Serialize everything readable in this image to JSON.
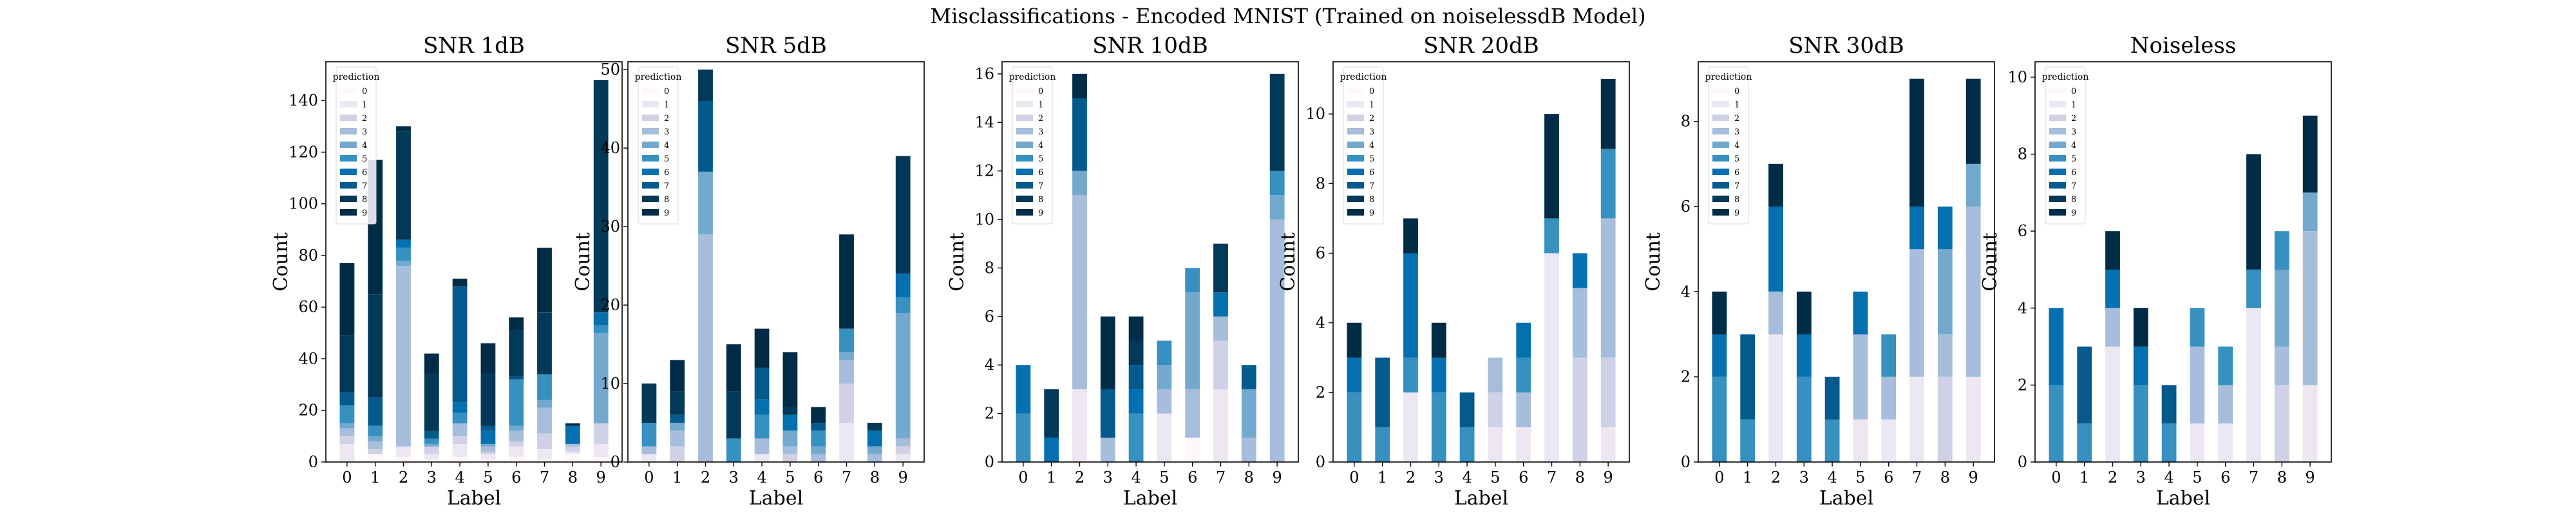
{
  "figure": {
    "title": "Misclassifications - Encoded MNIST (Trained on noiselessdB Model)"
  },
  "chart_data": [
    {
      "type": "bar",
      "stacked": true,
      "title": "SNR 1dB",
      "xlabel": "Label",
      "ylabel": "Count",
      "ylim": [
        0,
        155
      ],
      "yticks": [
        0,
        20,
        40,
        60,
        80,
        100,
        120,
        140
      ],
      "categories": [
        "0",
        "1",
        "2",
        "3",
        "4",
        "5",
        "6",
        "7",
        "8",
        "9"
      ],
      "legend_title": "prediction",
      "series": [
        {
          "name": "0",
          "values": [
            0,
            3,
            2,
            1,
            2,
            1,
            2,
            1,
            3,
            2
          ]
        },
        {
          "name": "1",
          "values": [
            7,
            0,
            4,
            2,
            5,
            2,
            4,
            4,
            1,
            5
          ]
        },
        {
          "name": "2",
          "values": [
            3,
            2,
            0,
            3,
            3,
            1,
            2,
            6,
            2,
            8
          ]
        },
        {
          "name": "3",
          "values": [
            3,
            3,
            70,
            0,
            5,
            2,
            4,
            10,
            1,
            0
          ]
        },
        {
          "name": "4",
          "values": [
            2,
            2,
            2,
            1,
            0,
            1,
            2,
            3,
            0,
            35
          ]
        },
        {
          "name": "5",
          "values": [
            7,
            4,
            5,
            2,
            4,
            0,
            18,
            10,
            0,
            3
          ]
        },
        {
          "name": "6",
          "values": [
            0,
            0,
            3,
            0,
            4,
            5,
            0,
            0,
            7,
            5
          ]
        },
        {
          "name": "7",
          "values": [
            5,
            11,
            0,
            3,
            45,
            2,
            1,
            0,
            0,
            0
          ]
        },
        {
          "name": "8",
          "values": [
            22,
            40,
            42,
            22,
            0,
            20,
            18,
            24,
            0,
            90
          ]
        },
        {
          "name": "9",
          "values": [
            28,
            52,
            2,
            8,
            3,
            12,
            5,
            25,
            1,
            0
          ]
        }
      ]
    },
    {
      "type": "bar",
      "stacked": true,
      "title": "SNR 5dB",
      "xlabel": "Label",
      "ylabel": "Count",
      "ylim": [
        0,
        51
      ],
      "yticks": [
        0,
        10,
        20,
        30,
        40,
        50
      ],
      "categories": [
        "0",
        "1",
        "2",
        "3",
        "4",
        "5",
        "6",
        "7",
        "8",
        "9"
      ],
      "legend_title": "prediction",
      "series": [
        {
          "name": "0",
          "values": [
            0,
            0,
            0,
            0,
            0,
            0,
            0,
            0,
            0,
            0
          ]
        },
        {
          "name": "1",
          "values": [
            1,
            0,
            0,
            0,
            1,
            0,
            0,
            5,
            0,
            1
          ]
        },
        {
          "name": "2",
          "values": [
            0,
            2,
            0,
            0,
            0,
            1,
            0,
            5,
            0,
            1
          ]
        },
        {
          "name": "3",
          "values": [
            1,
            2,
            29,
            0,
            2,
            1,
            1,
            3,
            1,
            1
          ]
        },
        {
          "name": "4",
          "values": [
            0,
            1,
            8,
            0,
            0,
            2,
            1,
            1,
            1,
            16
          ]
        },
        {
          "name": "5",
          "values": [
            3,
            0,
            0,
            3,
            3,
            0,
            2,
            3,
            0,
            2
          ]
        },
        {
          "name": "6",
          "values": [
            0,
            0,
            0,
            0,
            2,
            2,
            0,
            0,
            2,
            3
          ]
        },
        {
          "name": "7",
          "values": [
            0,
            1,
            9,
            0,
            4,
            0,
            1,
            0,
            0,
            0
          ]
        },
        {
          "name": "8",
          "values": [
            5,
            3,
            4,
            6,
            0,
            1,
            0,
            0,
            1,
            15
          ]
        },
        {
          "name": "9",
          "values": [
            0,
            4,
            0,
            6,
            5,
            7,
            2,
            12,
            0,
            0
          ]
        }
      ]
    },
    {
      "type": "bar",
      "stacked": true,
      "title": "SNR 10dB",
      "xlabel": "Label",
      "ylabel": "Count",
      "ylim": [
        0,
        16.5
      ],
      "yticks": [
        0,
        2,
        4,
        6,
        8,
        10,
        12,
        14,
        16
      ],
      "categories": [
        "0",
        "1",
        "2",
        "3",
        "4",
        "5",
        "6",
        "7",
        "8",
        "9"
      ],
      "legend_title": "prediction",
      "series": [
        {
          "name": "0",
          "values": [
            0,
            0,
            0,
            0,
            0,
            0,
            1,
            0,
            0,
            0
          ]
        },
        {
          "name": "1",
          "values": [
            0,
            0,
            3,
            0,
            0,
            2,
            0,
            3,
            0,
            0
          ]
        },
        {
          "name": "2",
          "values": [
            0,
            0,
            0,
            0,
            0,
            0,
            0,
            2,
            0,
            0
          ]
        },
        {
          "name": "3",
          "values": [
            0,
            0,
            8,
            1,
            0,
            1,
            2,
            1,
            1,
            10
          ]
        },
        {
          "name": "4",
          "values": [
            0,
            0,
            1,
            0,
            0,
            1,
            4,
            0,
            2,
            1
          ]
        },
        {
          "name": "5",
          "values": [
            2,
            0,
            0,
            0,
            2,
            1,
            1,
            0,
            0,
            1
          ]
        },
        {
          "name": "6",
          "values": [
            2,
            1,
            0,
            0,
            1,
            0,
            0,
            1,
            0,
            0
          ]
        },
        {
          "name": "7",
          "values": [
            0,
            0,
            3,
            2,
            1,
            0,
            0,
            0,
            1,
            0
          ]
        },
        {
          "name": "8",
          "values": [
            0,
            2,
            0,
            0,
            1,
            0,
            0,
            2,
            0,
            4
          ]
        },
        {
          "name": "9",
          "values": [
            0,
            0,
            1,
            3,
            1,
            0,
            0,
            0,
            0,
            0
          ]
        }
      ]
    },
    {
      "type": "bar",
      "stacked": true,
      "title": "SNR 20dB",
      "xlabel": "Label",
      "ylabel": "Count",
      "ylim": [
        0,
        11.5
      ],
      "yticks": [
        0,
        2,
        4,
        6,
        8,
        10
      ],
      "categories": [
        "0",
        "1",
        "2",
        "3",
        "4",
        "5",
        "6",
        "7",
        "8",
        "9"
      ],
      "legend_title": "prediction",
      "series": [
        {
          "name": "0",
          "values": [
            0,
            0,
            0,
            0,
            0,
            0,
            0,
            0,
            0,
            0
          ]
        },
        {
          "name": "1",
          "values": [
            0,
            0,
            2,
            0,
            0,
            1,
            1,
            6,
            0,
            1
          ]
        },
        {
          "name": "2",
          "values": [
            0,
            0,
            0,
            0,
            0,
            1,
            0,
            0,
            3,
            2
          ]
        },
        {
          "name": "3",
          "values": [
            0,
            0,
            0,
            0,
            0,
            1,
            1,
            0,
            2,
            4
          ]
        },
        {
          "name": "4",
          "values": [
            0,
            0,
            0,
            0,
            0,
            0,
            0,
            0,
            0,
            0
          ]
        },
        {
          "name": "5",
          "values": [
            2,
            1,
            1,
            2,
            1,
            0,
            1,
            1,
            0,
            2
          ]
        },
        {
          "name": "6",
          "values": [
            1,
            0,
            3,
            1,
            0,
            0,
            1,
            0,
            1,
            0
          ]
        },
        {
          "name": "7",
          "values": [
            0,
            2,
            0,
            0,
            1,
            0,
            0,
            0,
            0,
            0
          ]
        },
        {
          "name": "8",
          "values": [
            0,
            0,
            0,
            0,
            0,
            0,
            0,
            0,
            0,
            0
          ]
        },
        {
          "name": "9",
          "values": [
            1,
            0,
            1,
            1,
            0,
            0,
            0,
            3,
            0,
            2
          ]
        }
      ]
    },
    {
      "type": "bar",
      "stacked": true,
      "title": "SNR 30dB",
      "xlabel": "Label",
      "ylabel": "Count",
      "ylim": [
        0,
        9.4
      ],
      "yticks": [
        0,
        2,
        4,
        6,
        8
      ],
      "categories": [
        "0",
        "1",
        "2",
        "3",
        "4",
        "5",
        "6",
        "7",
        "8",
        "9"
      ],
      "legend_title": "prediction",
      "series": [
        {
          "name": "0",
          "values": [
            0,
            0,
            0,
            0,
            0,
            0,
            0,
            0,
            0,
            0
          ]
        },
        {
          "name": "1",
          "values": [
            0,
            0,
            3,
            0,
            0,
            1,
            1,
            2,
            0,
            2
          ]
        },
        {
          "name": "2",
          "values": [
            0,
            0,
            0,
            0,
            0,
            0,
            0,
            0,
            2,
            0
          ]
        },
        {
          "name": "3",
          "values": [
            0,
            0,
            1,
            0,
            0,
            2,
            1,
            3,
            1,
            4
          ]
        },
        {
          "name": "4",
          "values": [
            0,
            0,
            0,
            0,
            0,
            0,
            0,
            0,
            2,
            1
          ]
        },
        {
          "name": "5",
          "values": [
            2,
            1,
            0,
            2,
            1,
            0,
            1,
            0,
            0,
            0
          ]
        },
        {
          "name": "6",
          "values": [
            1,
            0,
            2,
            1,
            0,
            1,
            0,
            1,
            1,
            0
          ]
        },
        {
          "name": "7",
          "values": [
            0,
            2,
            0,
            0,
            1,
            0,
            0,
            0,
            0,
            0
          ]
        },
        {
          "name": "8",
          "values": [
            0,
            0,
            0,
            0,
            0,
            0,
            0,
            0,
            0,
            0
          ]
        },
        {
          "name": "9",
          "values": [
            1,
            0,
            1,
            1,
            0,
            0,
            0,
            3,
            0,
            2
          ]
        }
      ]
    },
    {
      "type": "bar",
      "stacked": true,
      "title": "Noiseless",
      "xlabel": "Label",
      "ylabel": "Count",
      "ylim": [
        0,
        10.4
      ],
      "yticks": [
        0,
        2,
        4,
        6,
        8,
        10
      ],
      "categories": [
        "0",
        "1",
        "2",
        "3",
        "4",
        "5",
        "6",
        "7",
        "8",
        "9"
      ],
      "legend_title": "prediction",
      "series": [
        {
          "name": "0",
          "values": [
            0,
            0,
            0,
            0,
            0,
            0,
            0,
            0,
            0,
            0
          ]
        },
        {
          "name": "1",
          "values": [
            0,
            0,
            3,
            0,
            0,
            1,
            1,
            4,
            0,
            2
          ]
        },
        {
          "name": "2",
          "values": [
            0,
            0,
            0,
            0,
            0,
            0,
            0,
            0,
            2,
            0
          ]
        },
        {
          "name": "3",
          "values": [
            0,
            0,
            1,
            0,
            0,
            2,
            1,
            0,
            1,
            4
          ]
        },
        {
          "name": "4",
          "values": [
            0,
            0,
            0,
            0,
            0,
            0,
            0,
            0,
            2,
            1
          ]
        },
        {
          "name": "5",
          "values": [
            2,
            1,
            0,
            2,
            1,
            1,
            1,
            1,
            1,
            0
          ]
        },
        {
          "name": "6",
          "values": [
            2,
            0,
            1,
            1,
            0,
            0,
            0,
            0,
            0,
            0
          ]
        },
        {
          "name": "7",
          "values": [
            0,
            2,
            0,
            0,
            1,
            0,
            0,
            0,
            0,
            0
          ]
        },
        {
          "name": "8",
          "values": [
            0,
            0,
            0,
            0,
            0,
            0,
            0,
            0,
            0,
            0
          ]
        },
        {
          "name": "9",
          "values": [
            0,
            0,
            1,
            1,
            0,
            0,
            0,
            3,
            0,
            2
          ]
        }
      ]
    }
  ],
  "palette": [
    "#fff7fb",
    "#ece7f2",
    "#d0d1e6",
    "#a6bddb",
    "#74a9cf",
    "#3690c0",
    "#0570b0",
    "#045a8d",
    "#023858",
    "#012c48"
  ]
}
